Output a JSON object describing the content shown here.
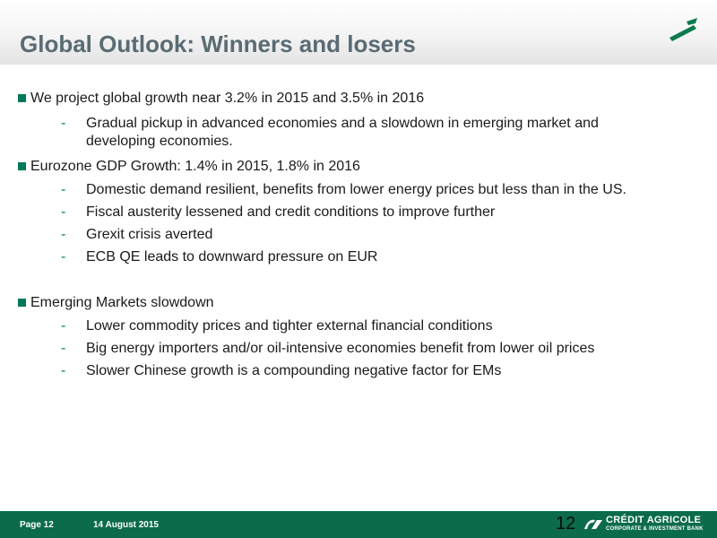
{
  "header": {
    "title": "Global Outlook: Winners and losers",
    "logo_icon": "green-stroke-logo-icon"
  },
  "content": {
    "bullets": [
      {
        "text": "We project global growth near 3.2% in 2015 and 3.5% in 2016",
        "subs": [
          {
            "line1": "Gradual pickup in advanced economies and a slowdown in emerging market and",
            "line2": "developing economies."
          }
        ]
      },
      {
        "text": "Eurozone GDP Growth: 1.4% in 2015, 1.8% in 2016",
        "subs": [
          {
            "line1": "Domestic demand resilient, benefits from lower energy prices but less than in the US."
          },
          {
            "line1": "Fiscal austerity lessened and credit conditions to improve further"
          },
          {
            "line1": "Grexit crisis averted"
          },
          {
            "line1": "ECB QE leads to downward pressure on EUR"
          }
        ]
      },
      {
        "text": "Emerging Markets slowdown",
        "subs": [
          {
            "line1": "Lower commodity prices and tighter external financial conditions"
          },
          {
            "line1": "Big energy importers and/or oil-intensive economies benefit from lower oil prices"
          },
          {
            "line1": "Slower Chinese growth is a compounding negative factor for EMs"
          }
        ]
      }
    ],
    "dash": "-"
  },
  "footer": {
    "page_label": "Page 12",
    "date": "14 August 2015",
    "slide_number": "12",
    "brand": "CRÉDIT AGRICOLE",
    "brand_sub": "CORPORATE & INVESTMENT BANK",
    "brand_icon": "credit-agricole-logo-icon"
  },
  "colors": {
    "accent": "#00785a",
    "footer_bg": "#0b6b4b",
    "title": "#5a6b74"
  }
}
